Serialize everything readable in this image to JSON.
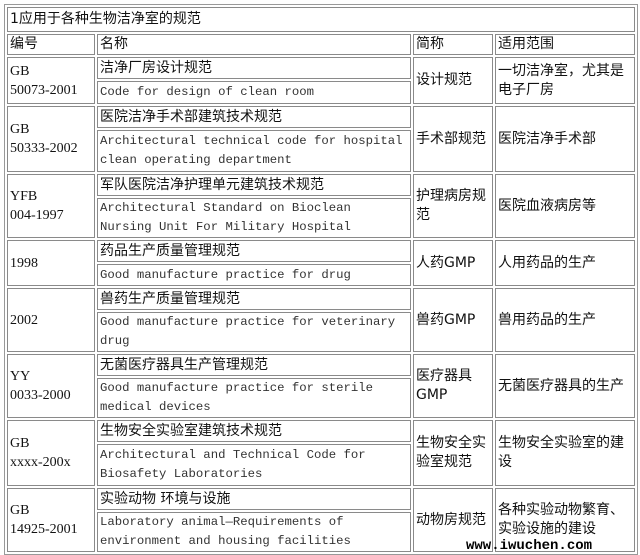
{
  "title": "1应用于各种生物洁净室的规范",
  "headers": [
    "编号",
    "名称",
    "简称",
    "适用范围"
  ],
  "rows": [
    {
      "code": [
        "GB",
        "50073-2001"
      ],
      "name_cn": "洁净厂房设计规范",
      "name_en": "Code for design of clean room",
      "short": "设计规范",
      "scope": "一切洁净室，尤其是电子厂房"
    },
    {
      "code": [
        "GB",
        "50333-2002"
      ],
      "name_cn": "医院洁净手术部建筑技术规范",
      "name_en": "Architectural technical code for hospital clean operating department",
      "short": "手术部规范",
      "scope": "医院洁净手术部"
    },
    {
      "code": [
        "YFB",
        "004-1997"
      ],
      "name_cn": "军队医院洁净护理单元建筑技术规范",
      "name_en": "Architectural Standard on Bioclean Nursing Unit For Military Hospital",
      "short": "护理病房规范",
      "scope": "医院血液病房等"
    },
    {
      "code": [
        "1998",
        ""
      ],
      "name_cn": "药品生产质量管理规范",
      "name_en": "Good manufacture practice for drug",
      "short": "人药GMP",
      "scope": "人用药品的生产"
    },
    {
      "code": [
        "2002",
        ""
      ],
      "name_cn": "兽药生产质量管理规范",
      "name_en": "Good manufacture practice for veterinary drug",
      "short": "兽药GMP",
      "scope": "兽用药品的生产"
    },
    {
      "code": [
        "YY",
        "0033-2000"
      ],
      "name_cn": "无菌医疗器具生产管理规范",
      "name_en": "Good manufacture practice for sterile medical devices",
      "short": "医疗器具GMP",
      "scope": "无菌医疗器具的生产"
    },
    {
      "code": [
        "GB",
        "xxxx-200x"
      ],
      "name_cn": "生物安全实验室建筑技术规范",
      "name_en": "Architectural and Technical Code for Biosafety Laboratories",
      "short": "生物安全实验室规范",
      "scope": "生物安全实验室的建设"
    },
    {
      "code": [
        "GB",
        "14925-2001"
      ],
      "name_cn": "实验动物 环境与设施",
      "name_en": "Laboratory animal—Requirements of environment and housing facilities",
      "short": "动物房规范",
      "scope": "各种实验动物繁育、实验设施的建设"
    }
  ],
  "watermark": "www.iwuchen.com"
}
